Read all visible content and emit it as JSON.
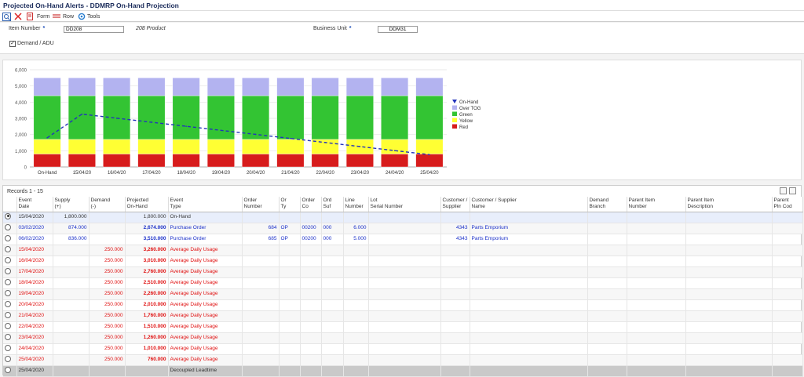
{
  "title": "Projected On-Hand Alerts - DDMRP On-Hand Projection",
  "toolbar": {
    "form_label": "Form",
    "row_label": "Row",
    "tools_label": "Tools"
  },
  "form": {
    "item_number_label": "Item Number",
    "item_number_value": "DD208",
    "item_description": "208 Product",
    "business_unit_label": "Business Unit",
    "business_unit_value": "DDM31",
    "demand_adu_label": "Demand / ADU",
    "required_mark": "*"
  },
  "colors": {
    "red": "#d71c1c",
    "yellow": "#ffff33",
    "green": "#33c433",
    "over_tog": "#b3b3f0",
    "on_hand_line": "#2233bb"
  },
  "chart_data": {
    "type": "bar",
    "stacked": true,
    "categories": [
      "On-Hand",
      "15/04/20",
      "16/04/20",
      "17/04/20",
      "18/04/20",
      "19/04/20",
      "20/04/20",
      "21/04/20",
      "22/04/20",
      "23/04/20",
      "24/04/20",
      "25/04/20"
    ],
    "series": [
      {
        "name": "Red",
        "values": [
          800,
          800,
          800,
          800,
          800,
          800,
          800,
          800,
          800,
          800,
          800,
          800
        ]
      },
      {
        "name": "Yellow",
        "values": [
          900,
          900,
          900,
          900,
          900,
          900,
          900,
          900,
          900,
          900,
          900,
          900
        ]
      },
      {
        "name": "Green",
        "values": [
          2700,
          2700,
          2700,
          2700,
          2700,
          2700,
          2700,
          2700,
          2700,
          2700,
          2700,
          2700
        ]
      },
      {
        "name": "Over TOG",
        "values": [
          1100,
          1100,
          1100,
          1100,
          1100,
          1100,
          1100,
          1100,
          1100,
          1100,
          1100,
          1100
        ]
      }
    ],
    "line_series": {
      "name": "On-Hand",
      "values": [
        1800,
        3260,
        3010,
        2760,
        2510,
        2260,
        2010,
        1760,
        1510,
        1260,
        1010,
        760
      ]
    },
    "legend_order": [
      "On-Hand",
      "Over TOG",
      "Green",
      "Yellow",
      "Red"
    ],
    "legend_position": "right",
    "yticks": [
      "0",
      "1,000",
      "2,000",
      "3,000",
      "4,000",
      "5,000",
      "6,000"
    ],
    "ylim": [
      0,
      6000
    ],
    "grid": true
  },
  "grid": {
    "records_label": "Records 1 - 15",
    "columns": [
      {
        "l1": "Event",
        "l2": "Date"
      },
      {
        "l1": "Supply",
        "l2": "(+)"
      },
      {
        "l1": "Demand",
        "l2": "(-)"
      },
      {
        "l1": "Projected",
        "l2": "On-Hand"
      },
      {
        "l1": "Event",
        "l2": "Type"
      },
      {
        "l1": "Order",
        "l2": "Number"
      },
      {
        "l1": "Or",
        "l2": "Ty"
      },
      {
        "l1": "Order",
        "l2": "Co"
      },
      {
        "l1": "Ord",
        "l2": "Suf"
      },
      {
        "l1": "Line",
        "l2": "Number"
      },
      {
        "l1": "Lot",
        "l2": "Serial Number"
      },
      {
        "l1": "Customer /",
        "l2": "Supplier"
      },
      {
        "l1": "Customer / Supplier",
        "l2": "Name"
      },
      {
        "l1": "Demand",
        "l2": "Branch"
      },
      {
        "l1": "Parent Item",
        "l2": "Number"
      },
      {
        "l1": "Parent Item",
        "l2": "Description"
      },
      {
        "l1": "Parent",
        "l2": "Pln Cod"
      }
    ],
    "rows": [
      {
        "style": "sel",
        "cells": [
          "15/04/2020",
          "1,800.000",
          "",
          "1,800.000",
          "On-Hand",
          "",
          "",
          "",
          "",
          "",
          "",
          "",
          "",
          "",
          "",
          "",
          ""
        ]
      },
      {
        "style": "blue",
        "cells": [
          "03/02/2020",
          "874.000",
          "",
          "2,674.000",
          "Purchase Order",
          "684",
          "OP",
          "00200",
          "000",
          "6.000",
          "",
          "4343",
          "Parts Emporium",
          "",
          "",
          "",
          ""
        ]
      },
      {
        "style": "blue",
        "cells": [
          "06/02/2020",
          "836.000",
          "",
          "3,510.000",
          "Purchase Order",
          "685",
          "OP",
          "00200",
          "000",
          "5.000",
          "",
          "4343",
          "Parts Emporium",
          "",
          "",
          "",
          ""
        ]
      },
      {
        "style": "red",
        "cells": [
          "15/04/2020",
          "",
          "250.000",
          "3,260.000",
          "Average Daily Usage",
          "",
          "",
          "",
          "",
          "",
          "",
          "",
          "",
          "",
          "",
          "",
          ""
        ]
      },
      {
        "style": "red",
        "cells": [
          "16/04/2020",
          "",
          "250.000",
          "3,010.000",
          "Average Daily Usage",
          "",
          "",
          "",
          "",
          "",
          "",
          "",
          "",
          "",
          "",
          "",
          ""
        ]
      },
      {
        "style": "red",
        "cells": [
          "17/04/2020",
          "",
          "250.000",
          "2,760.000",
          "Average Daily Usage",
          "",
          "",
          "",
          "",
          "",
          "",
          "",
          "",
          "",
          "",
          "",
          ""
        ]
      },
      {
        "style": "red",
        "cells": [
          "18/04/2020",
          "",
          "250.000",
          "2,510.000",
          "Average Daily Usage",
          "",
          "",
          "",
          "",
          "",
          "",
          "",
          "",
          "",
          "",
          "",
          ""
        ]
      },
      {
        "style": "red",
        "cells": [
          "19/04/2020",
          "",
          "250.000",
          "2,260.000",
          "Average Daily Usage",
          "",
          "",
          "",
          "",
          "",
          "",
          "",
          "",
          "",
          "",
          "",
          ""
        ]
      },
      {
        "style": "red",
        "cells": [
          "20/04/2020",
          "",
          "250.000",
          "2,010.000",
          "Average Daily Usage",
          "",
          "",
          "",
          "",
          "",
          "",
          "",
          "",
          "",
          "",
          "",
          ""
        ]
      },
      {
        "style": "red",
        "cells": [
          "21/04/2020",
          "",
          "250.000",
          "1,760.000",
          "Average Daily Usage",
          "",
          "",
          "",
          "",
          "",
          "",
          "",
          "",
          "",
          "",
          "",
          ""
        ]
      },
      {
        "style": "red",
        "cells": [
          "22/04/2020",
          "",
          "250.000",
          "1,510.000",
          "Average Daily Usage",
          "",
          "",
          "",
          "",
          "",
          "",
          "",
          "",
          "",
          "",
          "",
          ""
        ]
      },
      {
        "style": "red",
        "cells": [
          "23/04/2020",
          "",
          "250.000",
          "1,260.000",
          "Average Daily Usage",
          "",
          "",
          "",
          "",
          "",
          "",
          "",
          "",
          "",
          "",
          "",
          ""
        ]
      },
      {
        "style": "red",
        "cells": [
          "24/04/2020",
          "",
          "250.000",
          "1,010.000",
          "Average Daily Usage",
          "",
          "",
          "",
          "",
          "",
          "",
          "",
          "",
          "",
          "",
          "",
          ""
        ]
      },
      {
        "style": "red",
        "cells": [
          "25/04/2020",
          "",
          "250.000",
          "760.000",
          "Average Daily Usage",
          "",
          "",
          "",
          "",
          "",
          "",
          "",
          "",
          "",
          "",
          "",
          ""
        ]
      },
      {
        "style": "gray",
        "cells": [
          "25/04/2020",
          "",
          "",
          "",
          "Decoupled Leadtime",
          "",
          "",
          "",
          "",
          "",
          "",
          "",
          "",
          "",
          "",
          "",
          ""
        ]
      }
    ]
  }
}
